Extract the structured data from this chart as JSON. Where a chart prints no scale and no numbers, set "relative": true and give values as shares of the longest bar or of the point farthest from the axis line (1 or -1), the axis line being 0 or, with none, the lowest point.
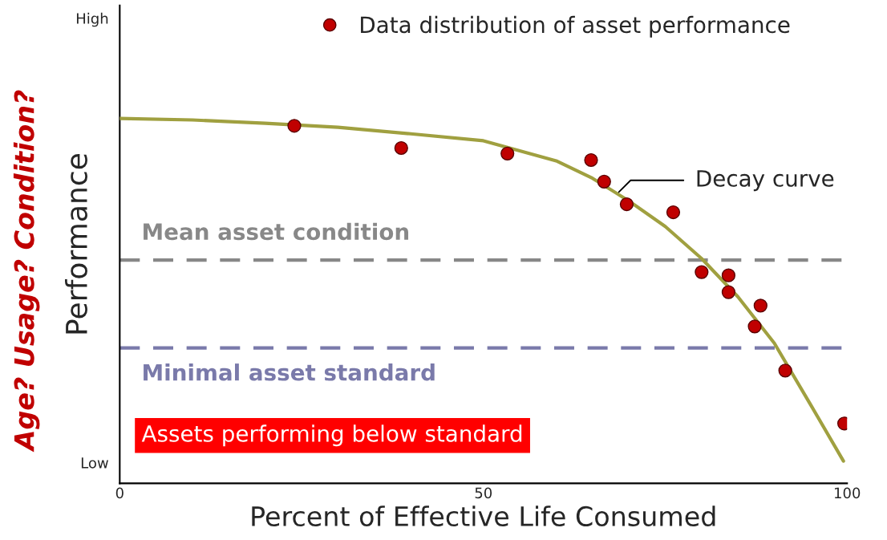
{
  "chart_data": {
    "type": "scatter",
    "xlabel": "Percent of Effective Life Consumed",
    "ylabel": "Performance",
    "xlim": [
      0,
      100
    ],
    "xticks": [
      0,
      50,
      100
    ],
    "relative": true,
    "series": [
      {
        "name": "Data distribution of asset performance",
        "color": "#c00000",
        "marker": "circle",
        "x": [
          24.0,
          38.7,
          53.3,
          64.8,
          66.6,
          69.7,
          76.1,
          80.0,
          83.7,
          83.7,
          88.1,
          87.3,
          91.5,
          99.6
        ],
        "values": [
          0.98,
          0.919,
          0.904,
          0.886,
          0.827,
          0.765,
          0.743,
          0.579,
          0.57,
          0.524,
          0.487,
          0.43,
          0.309,
          0.164
        ]
      },
      {
        "type": "line",
        "color": "#a0a040",
        "x": [
          0,
          10,
          20,
          30,
          40,
          50,
          60,
          65,
          70,
          75,
          80,
          85,
          90,
          95,
          99.5
        ],
        "values": [
          1.0,
          0.996,
          0.987,
          0.976,
          0.958,
          0.939,
          0.884,
          0.836,
          0.774,
          0.704,
          0.616,
          0.511,
          0.384,
          0.215,
          0.061
        ]
      }
    ],
    "ref_lines": [
      {
        "axis": "y",
        "value": 0.612,
        "label": "Mean asset condition",
        "color": "#888888",
        "line_style": "dashed"
      },
      {
        "axis": "y",
        "value": 0.371,
        "label": "Minimal asset standard",
        "color": "#7a7aaa",
        "line_style": "dashed"
      }
    ],
    "annotations": [
      "Decay curve",
      "Assets performing below standard",
      "Age? Usage? Condition?",
      "High",
      "Low"
    ],
    "legend": "top right",
    "grid": false,
    "line_style": "solid"
  }
}
